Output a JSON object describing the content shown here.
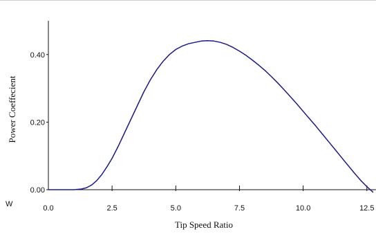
{
  "corner_label": "W",
  "chart_data": {
    "type": "line",
    "title": "",
    "xlabel": "Tip Speed Ratio",
    "ylabel": "Power Coeffecient",
    "xlim": [
      0,
      12.75
    ],
    "ylim": [
      0,
      0.5
    ],
    "x_ticks": [
      "0.0",
      "2.5",
      "5.0",
      "7.5",
      "10.0",
      "12.5"
    ],
    "y_ticks": [
      "0.00",
      "0.20",
      "0.40"
    ],
    "grid": false,
    "legend": "none",
    "line_color": "#1a1a8c",
    "series": [
      {
        "x": [
          0,
          0.5,
          1.0,
          1.3,
          1.5,
          1.7,
          1.9,
          2.1,
          2.3,
          2.5,
          2.75,
          3.0,
          3.25,
          3.5,
          3.75,
          4.0,
          4.25,
          4.5,
          4.75,
          5.0,
          5.25,
          5.5,
          5.75,
          6.0,
          6.25,
          6.5,
          6.75,
          7.0,
          7.25,
          7.5,
          7.75,
          8.0,
          8.25,
          8.5,
          8.75,
          9.0,
          9.25,
          9.5,
          9.75,
          10.0,
          10.25,
          10.5,
          10.75,
          11.0,
          11.25,
          11.5,
          11.75,
          12.0,
          12.25,
          12.5,
          12.75
        ],
        "y": [
          0.0,
          0.0,
          0.0,
          0.002,
          0.006,
          0.014,
          0.027,
          0.045,
          0.068,
          0.093,
          0.13,
          0.17,
          0.21,
          0.25,
          0.29,
          0.325,
          0.355,
          0.38,
          0.4,
          0.415,
          0.425,
          0.432,
          0.436,
          0.44,
          0.441,
          0.44,
          0.436,
          0.43,
          0.421,
          0.41,
          0.398,
          0.384,
          0.369,
          0.353,
          0.335,
          0.316,
          0.296,
          0.275,
          0.254,
          0.232,
          0.21,
          0.188,
          0.165,
          0.142,
          0.119,
          0.096,
          0.073,
          0.05,
          0.028,
          0.009,
          -0.008
        ]
      }
    ]
  }
}
